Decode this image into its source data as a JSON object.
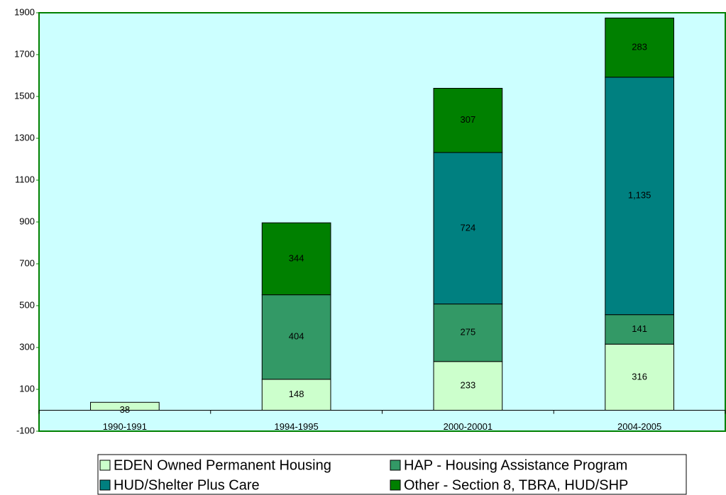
{
  "chart_data": {
    "type": "stacked_bar",
    "categories": [
      "1990-1991",
      "1994-1995",
      "2000-20001",
      "2004-2005"
    ],
    "series": [
      {
        "name": "EDEN Owned Permanent Housing",
        "color": "#ccffcc",
        "values": [
          38,
          148,
          233,
          316
        ]
      },
      {
        "name": "HAP - Housing Assistance Program",
        "color": "#339966",
        "values": [
          null,
          404,
          275,
          141
        ]
      },
      {
        "name": "HUD/Shelter Plus Care",
        "color": "#008080",
        "values": [
          null,
          null,
          724,
          1135
        ],
        "value_labels": [
          null,
          null,
          "724",
          "1,135"
        ]
      },
      {
        "name": "Other - Section 8, TBRA, HUD/SHP",
        "color": "#008000",
        "values": [
          null,
          344,
          307,
          283
        ]
      }
    ],
    "ylim": [
      -100,
      1900
    ],
    "yticks": [
      -100,
      100,
      300,
      500,
      700,
      900,
      1100,
      1300,
      1500,
      1700,
      1900
    ],
    "grid": false,
    "plot_background": "#ccffff",
    "legend": "bottom"
  }
}
